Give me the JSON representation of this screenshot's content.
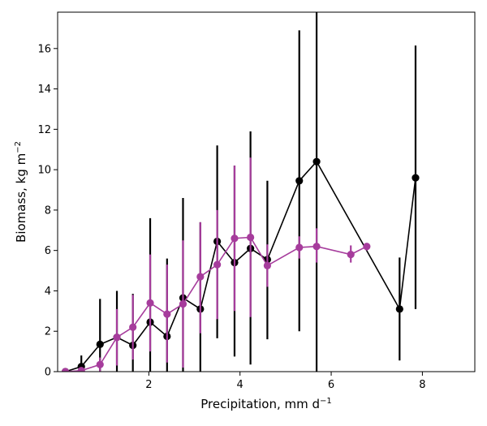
{
  "chart_data": {
    "type": "line",
    "title": "",
    "xlabel": "Precipitation,  mm d",
    "xlabel_unit_superscript": "−1",
    "ylabel": "Biomass,  kg m",
    "ylabel_unit_superscript": "−2",
    "xlim": [
      0.0,
      9.15
    ],
    "ylim": [
      0,
      17.8
    ],
    "xticks": [
      2,
      4,
      6,
      8
    ],
    "yticks": [
      0,
      2,
      4,
      6,
      8,
      10,
      12,
      14,
      16
    ],
    "grid": false,
    "legend": "none",
    "series": [
      {
        "color": "#000000",
        "marker": "circle",
        "points": [
          {
            "x": 0.17,
            "y": 0.0,
            "err_lo": 0.0,
            "err_hi": 0.0
          },
          {
            "x": 0.52,
            "y": 0.25,
            "err_lo": 0.0,
            "err_hi": 0.8
          },
          {
            "x": 0.93,
            "y": 1.35,
            "err_lo": 0.0,
            "err_hi": 3.6
          },
          {
            "x": 1.3,
            "y": 1.7,
            "err_lo": 0.0,
            "err_hi": 4.0
          },
          {
            "x": 1.65,
            "y": 1.3,
            "err_lo": 0.0,
            "err_hi": 3.85
          },
          {
            "x": 2.03,
            "y": 2.45,
            "err_lo": 0.0,
            "err_hi": 7.6
          },
          {
            "x": 2.4,
            "y": 1.75,
            "err_lo": 0.0,
            "err_hi": 5.6
          },
          {
            "x": 2.75,
            "y": 3.65,
            "err_lo": 0.0,
            "err_hi": 8.6
          },
          {
            "x": 3.13,
            "y": 3.1,
            "err_lo": 0.0,
            "err_hi": 7.4
          },
          {
            "x": 3.5,
            "y": 6.45,
            "err_lo": 1.65,
            "err_hi": 11.2
          },
          {
            "x": 3.88,
            "y": 5.4,
            "err_lo": 0.75,
            "err_hi": 10.2
          },
          {
            "x": 4.23,
            "y": 6.1,
            "err_lo": 0.35,
            "err_hi": 11.9
          },
          {
            "x": 4.6,
            "y": 5.55,
            "err_lo": 1.6,
            "err_hi": 9.45
          },
          {
            "x": 5.3,
            "y": 9.45,
            "err_lo": 2.0,
            "err_hi": 16.9
          },
          {
            "x": 5.68,
            "y": 10.4,
            "err_lo": 0.0,
            "err_hi": 17.8
          },
          {
            "x": 7.5,
            "y": 3.1,
            "err_lo": 0.55,
            "err_hi": 5.65
          },
          {
            "x": 7.85,
            "y": 9.6,
            "err_lo": 3.1,
            "err_hi": 16.15
          }
        ]
      },
      {
        "color": "#a63c9c",
        "marker": "circle",
        "points": [
          {
            "x": 0.17,
            "y": 0.0,
            "err_lo": 0.0,
            "err_hi": 0.0
          },
          {
            "x": 0.52,
            "y": 0.05,
            "err_lo": 0.0,
            "err_hi": 0.1
          },
          {
            "x": 0.93,
            "y": 0.35,
            "err_lo": 0.0,
            "err_hi": 0.7
          },
          {
            "x": 1.3,
            "y": 1.7,
            "err_lo": 0.3,
            "err_hi": 3.1
          },
          {
            "x": 1.65,
            "y": 2.2,
            "err_lo": 0.6,
            "err_hi": 3.8
          },
          {
            "x": 2.03,
            "y": 3.4,
            "err_lo": 1.0,
            "err_hi": 5.8
          },
          {
            "x": 2.4,
            "y": 2.85,
            "err_lo": 0.45,
            "err_hi": 5.3
          },
          {
            "x": 2.75,
            "y": 3.35,
            "err_lo": 0.2,
            "err_hi": 6.5
          },
          {
            "x": 3.13,
            "y": 4.7,
            "err_lo": 1.9,
            "err_hi": 7.4
          },
          {
            "x": 3.5,
            "y": 5.3,
            "err_lo": 2.6,
            "err_hi": 8.0
          },
          {
            "x": 3.88,
            "y": 6.6,
            "err_lo": 3.0,
            "err_hi": 10.2
          },
          {
            "x": 4.23,
            "y": 6.65,
            "err_lo": 2.7,
            "err_hi": 10.6
          },
          {
            "x": 4.6,
            "y": 5.25,
            "err_lo": 4.2,
            "err_hi": 6.3
          },
          {
            "x": 5.3,
            "y": 6.15,
            "err_lo": 5.6,
            "err_hi": 6.7
          },
          {
            "x": 5.68,
            "y": 6.2,
            "err_lo": 5.4,
            "err_hi": 7.1
          },
          {
            "x": 6.43,
            "y": 5.8,
            "err_lo": 5.4,
            "err_hi": 6.25
          },
          {
            "x": 6.78,
            "y": 6.2,
            "err_lo": 6.0,
            "err_hi": 6.35
          }
        ]
      }
    ]
  }
}
